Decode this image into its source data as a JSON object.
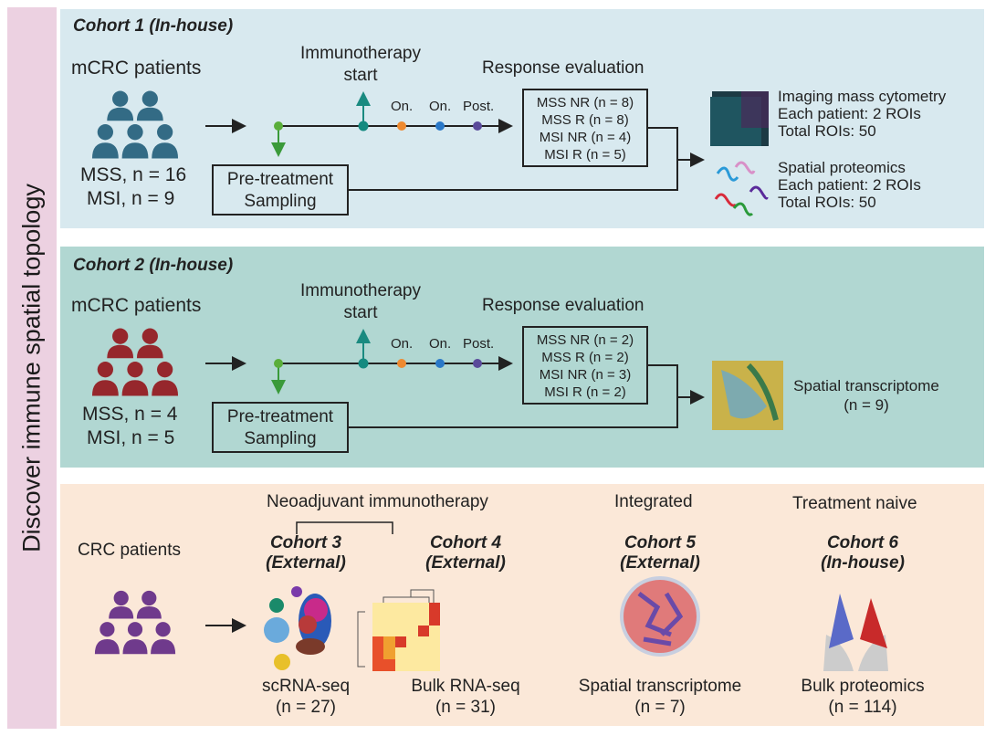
{
  "side_title": "Discover immune spatial topology",
  "colors": {
    "cohort1": "#336b85",
    "cohort2": "#96272c",
    "bottom": "#6f3a8c"
  },
  "cohort1": {
    "title": "Cohort 1 (In-house)",
    "patients": "mCRC patients",
    "mss": "MSS, n = 16",
    "msi": "MSI, n = 9",
    "immuno": "Immunotherapy",
    "start": "start",
    "on1": "On.",
    "on2": "On.",
    "post": "Post.",
    "response": "Response evaluation",
    "groups": [
      "MSS NR (n = 8)",
      "MSS R (n = 8)",
      "MSI NR (n = 4)",
      "MSI R (n = 5)"
    ],
    "pre1": "Pre-treatment",
    "pre2": "Sampling",
    "imc": [
      "Imaging mass cytometry",
      "Each patient: 2 ROIs",
      "Total ROIs: 50"
    ],
    "sp": [
      "Spatial proteomics",
      "Each patient: 2 ROIs",
      "Total ROIs: 50"
    ]
  },
  "cohort2": {
    "title": "Cohort 2 (In-house)",
    "patients": "mCRC patients",
    "mss": "MSS, n = 4",
    "msi": "MSI, n = 5",
    "immuno": "Immunotherapy",
    "start": "start",
    "on1": "On.",
    "on2": "On.",
    "post": "Post.",
    "response": "Response evaluation",
    "groups": [
      "MSS NR (n = 2)",
      "MSS R (n = 2)",
      "MSI NR (n = 3)",
      "MSI R (n = 2)"
    ],
    "pre1": "Pre-treatment",
    "pre2": "Sampling",
    "st1": "Spatial transcriptome",
    "st2": "(n = 9)"
  },
  "bottom": {
    "patients": "CRC patients",
    "neo": "Neoadjuvant immunotherapy",
    "integrated": "Integrated",
    "naive": "Treatment naive",
    "cohorts": [
      {
        "title": "Cohort 3",
        "sub": "(External)",
        "label": "scRNA-seq",
        "n": "(n = 27)"
      },
      {
        "title": "Cohort 4",
        "sub": "(External)",
        "label": "Bulk RNA-seq",
        "n": "(n = 31)"
      },
      {
        "title": "Cohort 5",
        "sub": "(External)",
        "label": "Spatial transcriptome",
        "n": "(n = 7)"
      },
      {
        "title": "Cohort 6",
        "sub": "(In-house)",
        "label": "Bulk proteomics",
        "n": "(n = 114)"
      }
    ]
  }
}
